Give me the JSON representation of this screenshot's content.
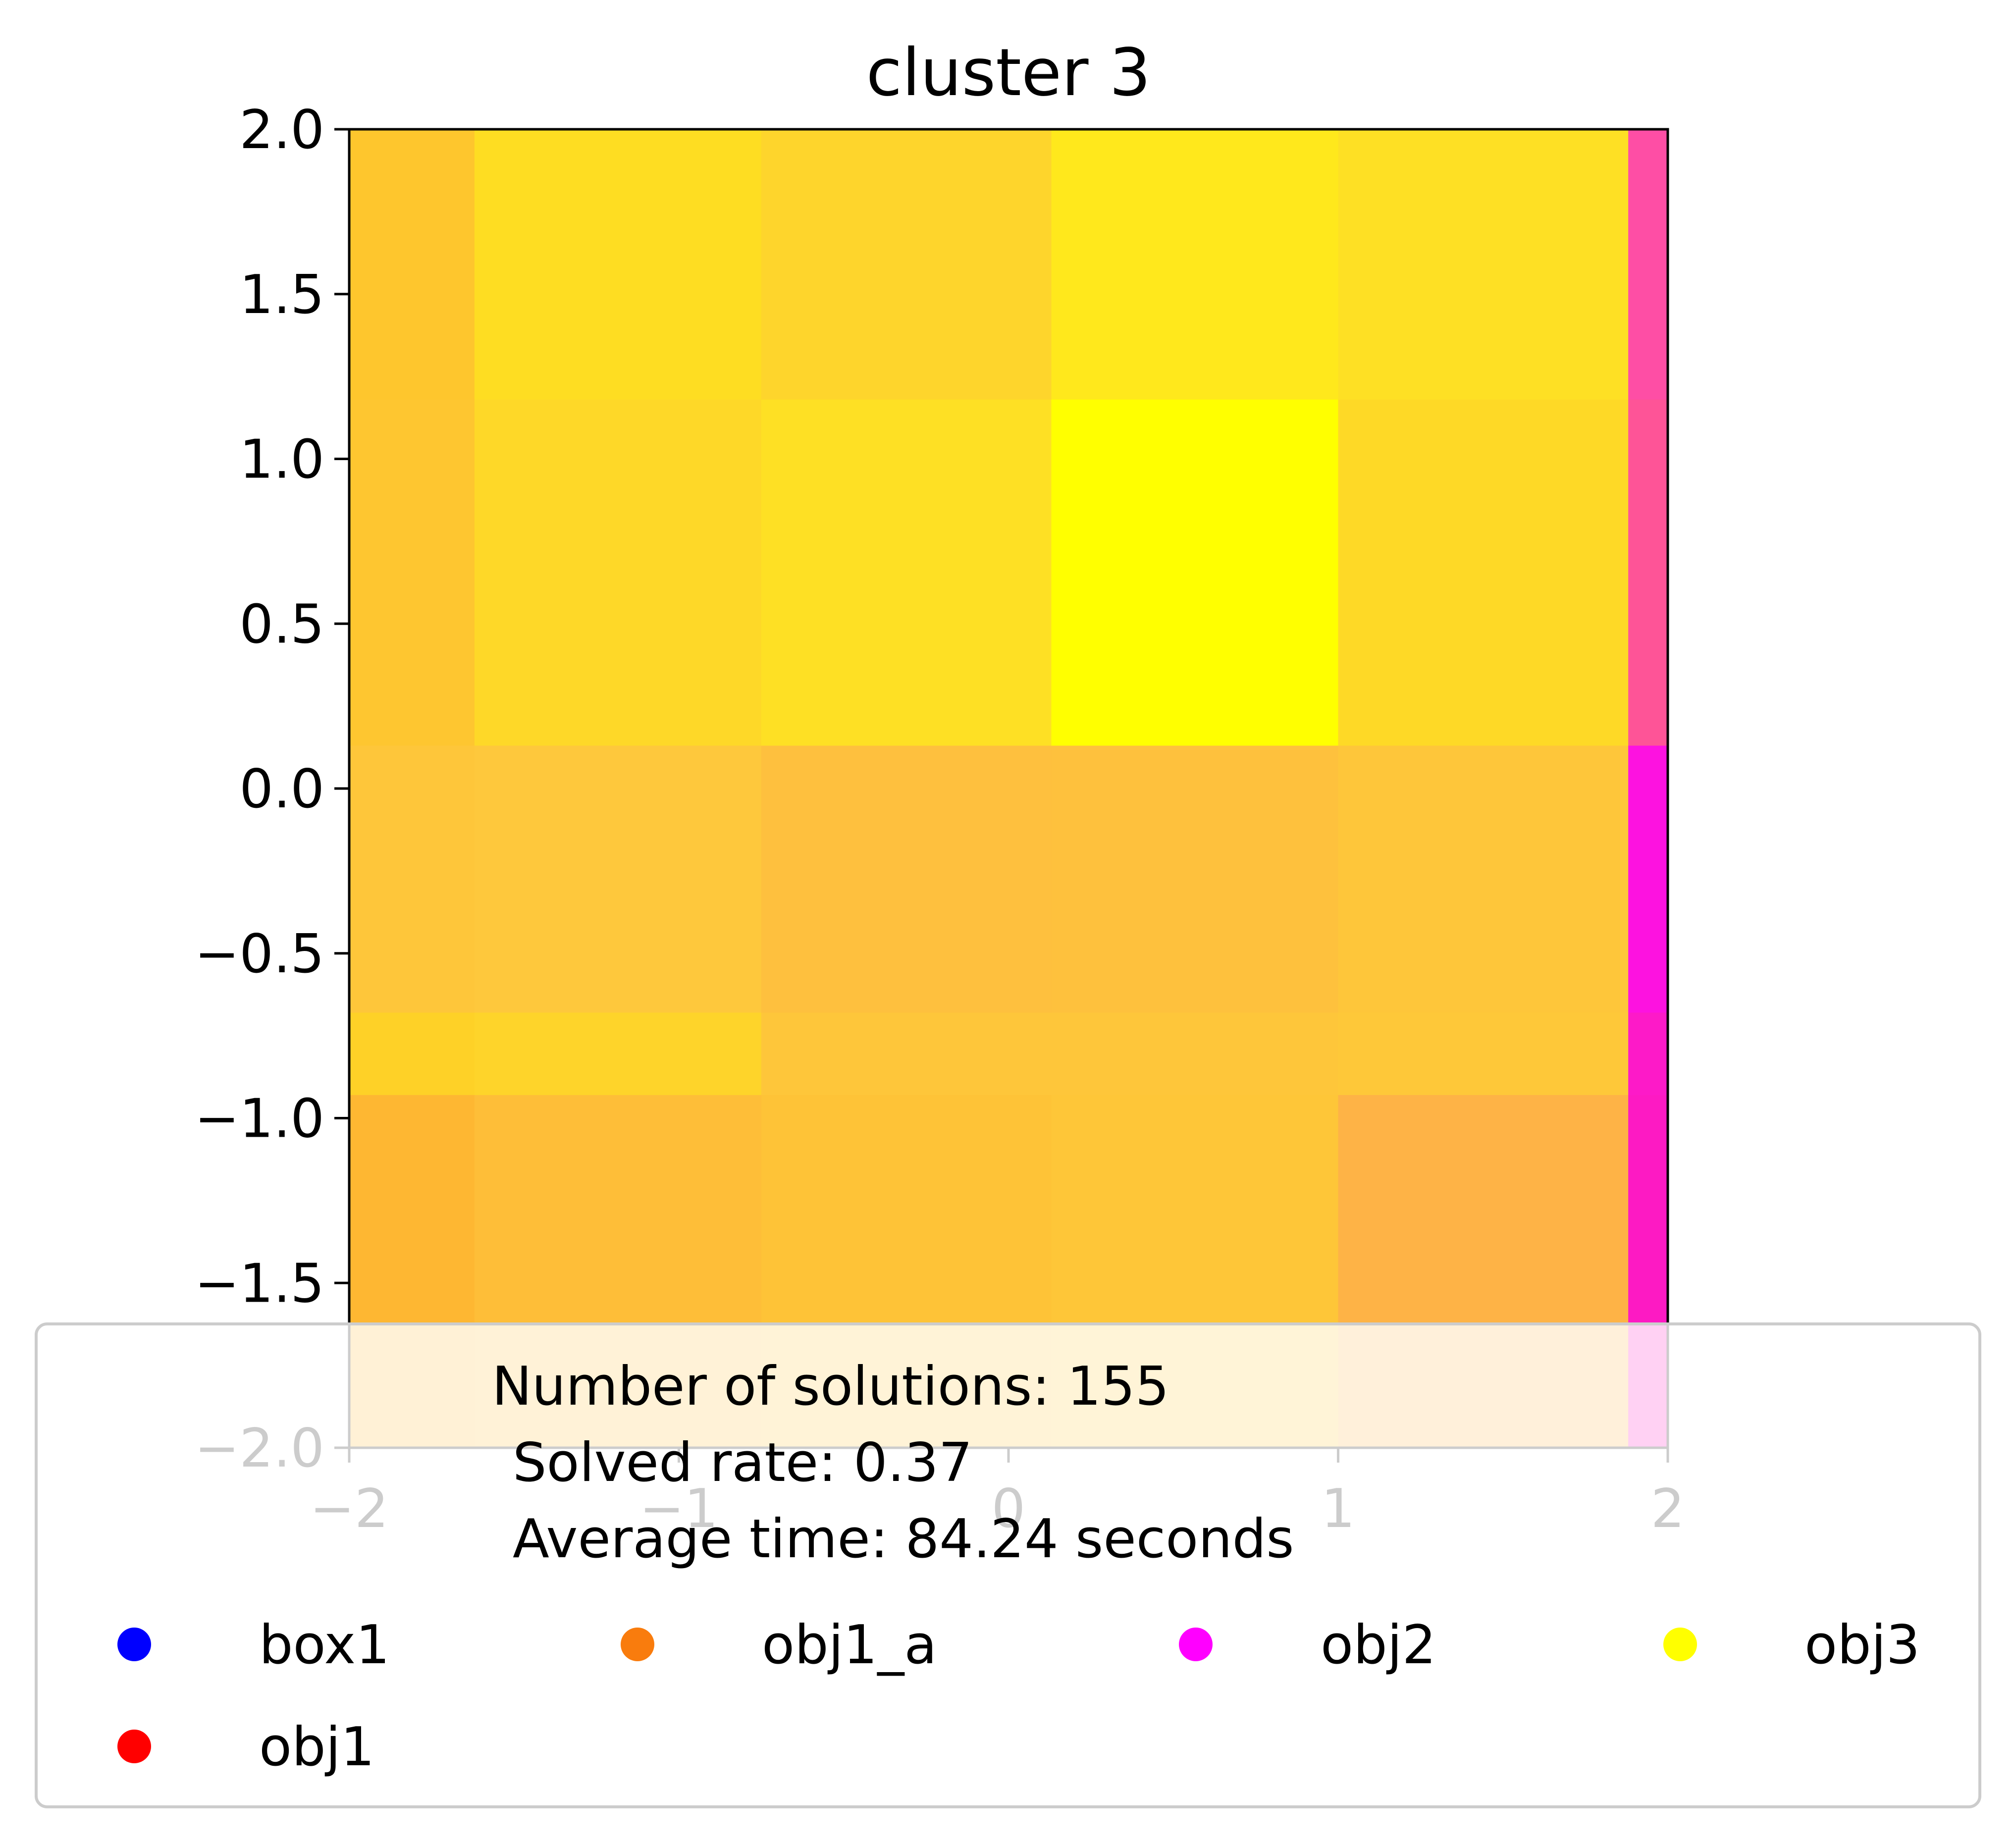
{
  "chart_data": {
    "type": "heatmap",
    "title": "cluster 3",
    "xlabel": "",
    "ylabel": "",
    "xlim": [
      -2,
      2
    ],
    "ylim": [
      -2,
      2
    ],
    "x_ticks": [
      "−2",
      "−1",
      "0",
      "1",
      "2"
    ],
    "y_ticks": [
      "2.0",
      "1.5",
      "1.0",
      "0.5",
      "0.0",
      "−0.5",
      "−1.0",
      "−1.5",
      "−2.0"
    ],
    "grid": false,
    "cells": [
      {
        "x": [
          -2.0,
          -1.62
        ],
        "y": [
          1.18,
          2.0
        ],
        "color": "#fec62d"
      },
      {
        "x": [
          -1.62,
          -0.75
        ],
        "y": [
          1.18,
          2.0
        ],
        "color": "#fedd22"
      },
      {
        "x": [
          -0.75,
          0.13
        ],
        "y": [
          1.18,
          2.0
        ],
        "color": "#fed52c"
      },
      {
        "x": [
          0.13,
          1.0
        ],
        "y": [
          1.18,
          2.0
        ],
        "color": "#ffe81c"
      },
      {
        "x": [
          1.0,
          1.88
        ],
        "y": [
          1.18,
          2.0
        ],
        "color": "#fee024"
      },
      {
        "x": [
          1.88,
          2.0
        ],
        "y": [
          1.18,
          2.0
        ],
        "color": "#fe4ea5"
      },
      {
        "x": [
          -2.0,
          -1.62
        ],
        "y": [
          0.13,
          1.18
        ],
        "color": "#fec630"
      },
      {
        "x": [
          -1.62,
          -0.75
        ],
        "y": [
          0.13,
          1.18
        ],
        "color": "#fed828"
      },
      {
        "x": [
          -0.75,
          0.13
        ],
        "y": [
          0.13,
          1.18
        ],
        "color": "#fee024"
      },
      {
        "x": [
          0.13,
          1.0
        ],
        "y": [
          0.13,
          1.18
        ],
        "color": "#ffff00"
      },
      {
        "x": [
          1.0,
          1.88
        ],
        "y": [
          0.13,
          1.18
        ],
        "color": "#fed926"
      },
      {
        "x": [
          1.88,
          2.0
        ],
        "y": [
          0.13,
          1.18
        ],
        "color": "#fe5497"
      },
      {
        "x": [
          -2.0,
          -1.62
        ],
        "y": [
          -0.68,
          0.13
        ],
        "color": "#fec63a"
      },
      {
        "x": [
          -1.62,
          -0.75
        ],
        "y": [
          -0.68,
          0.13
        ],
        "color": "#fec83c"
      },
      {
        "x": [
          -0.75,
          0.13
        ],
        "y": [
          -0.68,
          0.13
        ],
        "color": "#fec03e"
      },
      {
        "x": [
          0.13,
          1.0
        ],
        "y": [
          -0.68,
          0.13
        ],
        "color": "#fec13d"
      },
      {
        "x": [
          1.0,
          1.88
        ],
        "y": [
          -0.68,
          0.13
        ],
        "color": "#fec63a"
      },
      {
        "x": [
          1.88,
          2.0
        ],
        "y": [
          -0.68,
          0.13
        ],
        "color": "#fd12e0"
      },
      {
        "x": [
          -2.0,
          -1.62
        ],
        "y": [
          -0.93,
          -0.68
        ],
        "color": "#fed127"
      },
      {
        "x": [
          -1.62,
          -0.75
        ],
        "y": [
          -0.93,
          -0.68
        ],
        "color": "#fed42a"
      },
      {
        "x": [
          -0.75,
          0.13
        ],
        "y": [
          -0.93,
          -0.68
        ],
        "color": "#fec63a"
      },
      {
        "x": [
          0.13,
          1.0
        ],
        "y": [
          -0.93,
          -0.68
        ],
        "color": "#fec63a"
      },
      {
        "x": [
          1.0,
          1.88
        ],
        "y": [
          -0.93,
          -0.68
        ],
        "color": "#fec839"
      },
      {
        "x": [
          1.88,
          2.0
        ],
        "y": [
          -0.93,
          -0.68
        ],
        "color": "#fd1ac8"
      },
      {
        "x": [
          -2.0,
          -1.62
        ],
        "y": [
          -2.0,
          -0.93
        ],
        "color": "#feb732"
      },
      {
        "x": [
          -1.62,
          -0.75
        ],
        "y": [
          -2.0,
          -0.93
        ],
        "color": "#febe38"
      },
      {
        "x": [
          -0.75,
          0.13
        ],
        "y": [
          -2.0,
          -0.93
        ],
        "color": "#fec337"
      },
      {
        "x": [
          0.13,
          1.0
        ],
        "y": [
          -2.0,
          -0.93
        ],
        "color": "#fec638"
      },
      {
        "x": [
          1.0,
          1.88
        ],
        "y": [
          -2.0,
          -0.93
        ],
        "color": "#feb346"
      },
      {
        "x": [
          1.88,
          2.0
        ],
        "y": [
          -2.0,
          -0.93
        ],
        "color": "#fd1ac3"
      }
    ],
    "annotation": {
      "lines": [
        "Number of solutions: 155",
        "Solved rate: 0.37",
        "Average time: 84.24 seconds"
      ]
    },
    "legend": {
      "placement": "bottom",
      "entries": [
        {
          "label": "box1",
          "color": "#0000ff"
        },
        {
          "label": "obj1_a",
          "color": "#f97c0d"
        },
        {
          "label": "obj2",
          "color": "#ff00ff"
        },
        {
          "label": "obj3",
          "color": "#ffff00"
        },
        {
          "label": "obj1",
          "color": "#ff0000"
        }
      ]
    }
  }
}
